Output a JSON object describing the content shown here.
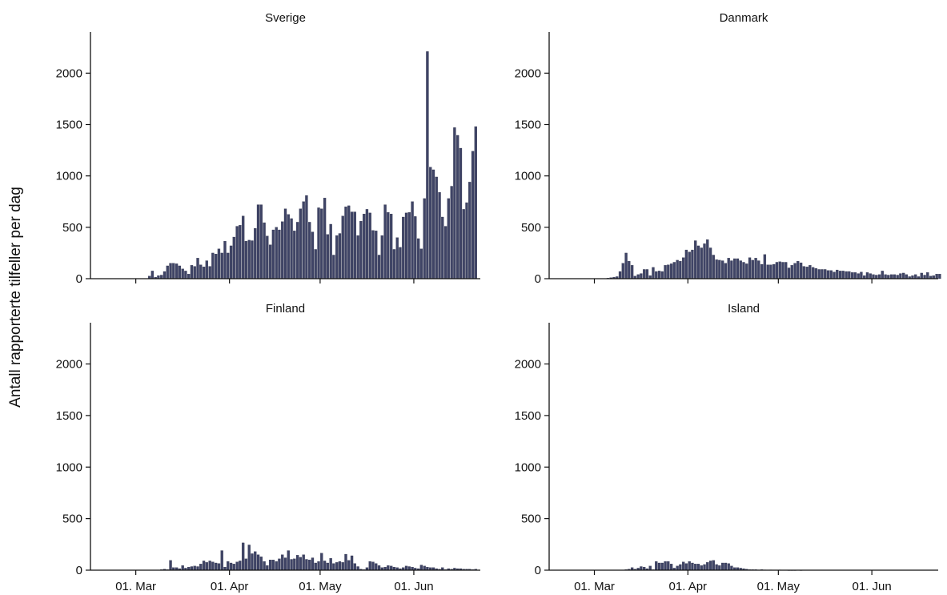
{
  "chart_data": {
    "type": "bar",
    "ylabel": "Antall rapporterte tilfeller per dag",
    "bar_color": "#3f4466",
    "ylim": [
      0,
      2400
    ],
    "yticks": [
      0,
      500,
      1000,
      1500,
      2000
    ],
    "x_start": "2020-02-15",
    "xlim": [
      "2020-02-15",
      "2020-06-23"
    ],
    "xticks": [
      {
        "date": "2020-03-01",
        "label": "01. Mar"
      },
      {
        "date": "2020-04-01",
        "label": "01. Apr"
      },
      {
        "date": "2020-05-01",
        "label": "01. May"
      },
      {
        "date": "2020-06-01",
        "label": "01. Jun"
      }
    ],
    "panels": [
      {
        "name": "Sverige",
        "values": [
          0,
          0,
          0,
          0,
          0,
          0,
          0,
          0,
          0,
          0,
          0,
          0,
          0,
          0,
          0,
          0,
          0,
          0,
          2,
          25,
          75,
          15,
          30,
          35,
          70,
          125,
          150,
          150,
          145,
          125,
          95,
          75,
          45,
          130,
          120,
          200,
          135,
          115,
          175,
          120,
          250,
          240,
          290,
          250,
          365,
          250,
          320,
          405,
          510,
          520,
          610,
          365,
          375,
          370,
          490,
          720,
          720,
          545,
          415,
          330,
          475,
          500,
          475,
          555,
          680,
          625,
          585,
          465,
          550,
          680,
          750,
          810,
          550,
          455,
          285,
          690,
          680,
          785,
          430,
          530,
          230,
          420,
          440,
          610,
          700,
          710,
          650,
          650,
          420,
          560,
          630,
          675,
          640,
          470,
          465,
          230,
          420,
          720,
          645,
          630,
          285,
          400,
          305,
          600,
          640,
          645,
          750,
          605,
          390,
          290,
          780,
          2210,
          1085,
          1060,
          990,
          840,
          600,
          510,
          780,
          900,
          1470,
          1395,
          1270,
          675,
          740,
          940,
          1240,
          1480
        ]
      },
      {
        "name": "Danmark",
        "values": [
          0,
          0,
          0,
          0,
          0,
          0,
          0,
          0,
          0,
          0,
          0,
          0,
          0,
          0,
          0,
          0,
          0,
          0,
          2,
          5,
          10,
          15,
          20,
          70,
          150,
          250,
          170,
          130,
          25,
          40,
          50,
          90,
          90,
          30,
          110,
          70,
          75,
          70,
          130,
          135,
          145,
          160,
          180,
          170,
          205,
          280,
          260,
          280,
          370,
          320,
          300,
          340,
          380,
          300,
          230,
          185,
          180,
          175,
          150,
          200,
          175,
          195,
          195,
          175,
          160,
          145,
          205,
          180,
          200,
          175,
          140,
          235,
          135,
          135,
          140,
          160,
          165,
          160,
          160,
          105,
          130,
          150,
          170,
          155,
          120,
          115,
          130,
          110,
          100,
          90,
          90,
          90,
          80,
          80,
          65,
          85,
          75,
          75,
          70,
          70,
          60,
          60,
          50,
          65,
          30,
          60,
          50,
          40,
          35,
          40,
          75,
          40,
          35,
          40,
          40,
          35,
          50,
          55,
          40,
          20,
          30,
          40,
          20,
          55,
          35,
          60,
          25,
          30,
          45,
          45
        ]
      },
      {
        "name": "Finland",
        "values": [
          0,
          0,
          0,
          0,
          0,
          0,
          0,
          0,
          0,
          0,
          0,
          0,
          0,
          0,
          0,
          0,
          0,
          0,
          0,
          0,
          0,
          0,
          2,
          5,
          10,
          5,
          95,
          25,
          25,
          15,
          45,
          20,
          30,
          35,
          40,
          35,
          60,
          90,
          75,
          90,
          80,
          70,
          65,
          190,
          30,
          85,
          70,
          60,
          80,
          90,
          265,
          110,
          245,
          160,
          180,
          150,
          130,
          85,
          45,
          100,
          100,
          85,
          110,
          150,
          120,
          190,
          105,
          110,
          145,
          125,
          150,
          105,
          100,
          120,
          70,
          85,
          165,
          90,
          70,
          115,
          65,
          75,
          85,
          75,
          155,
          95,
          140,
          65,
          35,
          10,
          5,
          25,
          85,
          80,
          65,
          45,
          25,
          30,
          45,
          40,
          30,
          25,
          15,
          25,
          40,
          35,
          30,
          20,
          15,
          50,
          40,
          30,
          25,
          25,
          15,
          10,
          25,
          5,
          15,
          10,
          20,
          15,
          15,
          10,
          10,
          10,
          5,
          10
        ]
      },
      {
        "name": "Island",
        "values": [
          0,
          0,
          0,
          0,
          0,
          0,
          0,
          0,
          0,
          0,
          0,
          0,
          0,
          0,
          0,
          0,
          0,
          0,
          0,
          0,
          0,
          0,
          0,
          0,
          0,
          5,
          10,
          25,
          10,
          20,
          35,
          30,
          15,
          40,
          5,
          85,
          70,
          70,
          85,
          85,
          60,
          20,
          40,
          55,
          80,
          65,
          85,
          70,
          60,
          60,
          45,
          55,
          75,
          90,
          95,
          55,
          45,
          70,
          70,
          65,
          40,
          25,
          25,
          20,
          15,
          10,
          5,
          5,
          5,
          3,
          5,
          3,
          2,
          3,
          2,
          2,
          3,
          2,
          2,
          1,
          1,
          1,
          0,
          1,
          0,
          0,
          0,
          0,
          0,
          0,
          0,
          0,
          0,
          0,
          0,
          0,
          0,
          0,
          0,
          0,
          0,
          0,
          0,
          0,
          0,
          0,
          0,
          0,
          0,
          0,
          0,
          0,
          0,
          0,
          0,
          0,
          0,
          0,
          0,
          0,
          0,
          0,
          0,
          0,
          0,
          0,
          0,
          0,
          0,
          0
        ]
      }
    ]
  }
}
